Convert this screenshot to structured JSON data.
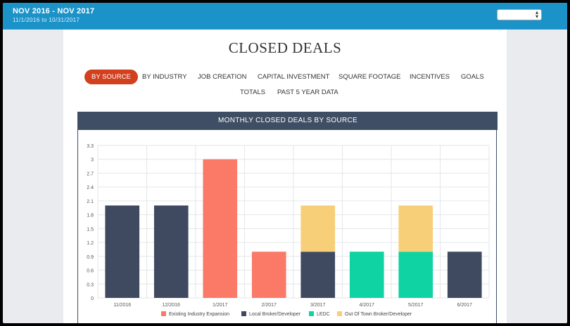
{
  "header": {
    "range_title": "NOV 2016 - NOV 2017",
    "range_dates": "11/1/2016 to 10/31/2017",
    "period_select_value": ""
  },
  "page": {
    "title": "CLOSED DEALS"
  },
  "tabs": [
    {
      "label": "BY SOURCE",
      "active": true
    },
    {
      "label": "BY INDUSTRY",
      "active": false
    },
    {
      "label": "JOB CREATION",
      "active": false
    },
    {
      "label": "CAPITAL INVESTMENT",
      "active": false
    },
    {
      "label": "SQUARE FOOTAGE",
      "active": false
    },
    {
      "label": "INCENTIVES",
      "active": false
    },
    {
      "label": "GOALS",
      "active": false
    },
    {
      "label": "TOTALS",
      "active": false
    },
    {
      "label": "PAST 5 YEAR DATA",
      "active": false
    }
  ],
  "chart_data": {
    "type": "bar",
    "stacked": true,
    "title": "MONTHLY CLOSED DEALS BY SOURCE",
    "xlabel": "",
    "ylabel": "",
    "categories": [
      "11/2016",
      "12/2016",
      "1/2017",
      "2/2017",
      "3/2017",
      "4/2017",
      "5/2017",
      "6/2017"
    ],
    "ylim": [
      0,
      3.3
    ],
    "yticks": [
      "0",
      "0.3",
      "0.6",
      "0.9",
      "1.2",
      "1.5",
      "1.8",
      "2.1",
      "2.4",
      "2.7",
      "3",
      "3.3"
    ],
    "grid": true,
    "legend_position": "bottom",
    "series": [
      {
        "name": "Existing Industry Expansion",
        "color": "#fa7a67",
        "values": [
          0,
          0,
          3,
          1,
          0,
          0,
          0,
          0
        ]
      },
      {
        "name": "Local Broker/Developer",
        "color": "#3f4a60",
        "values": [
          2,
          2,
          0,
          0,
          1,
          0,
          0,
          1
        ]
      },
      {
        "name": "LEDC",
        "color": "#0fd3a2",
        "values": [
          0,
          0,
          0,
          0,
          0,
          1,
          1,
          0
        ]
      },
      {
        "name": "Out Of Town Broker/Developer",
        "color": "#f7cf78",
        "values": [
          0,
          0,
          0,
          0,
          1,
          0,
          1,
          0
        ]
      }
    ]
  }
}
